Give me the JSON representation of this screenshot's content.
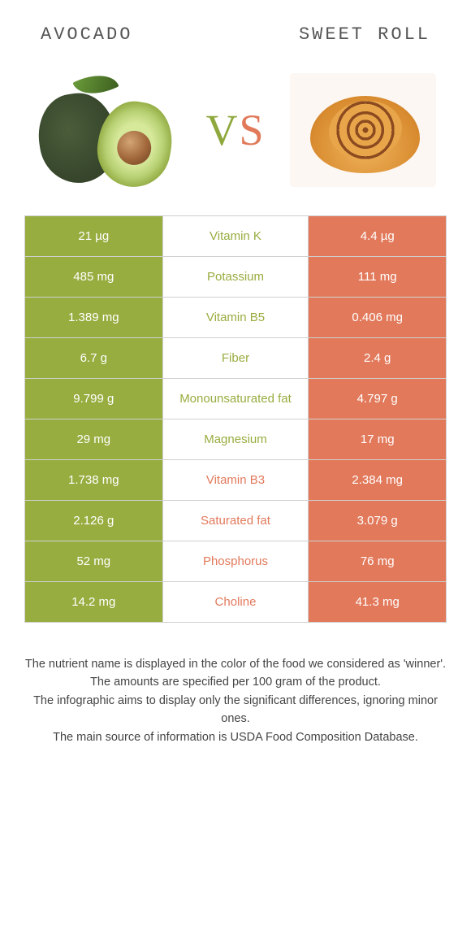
{
  "colors": {
    "left": "#97ad3f",
    "right": "#e2795b",
    "row_border": "#d0d0d0",
    "text_white": "#ffffff"
  },
  "foods": {
    "left": {
      "title": "Avocado"
    },
    "right": {
      "title": "Sweet roll"
    }
  },
  "vs": {
    "v": "V",
    "s": "S"
  },
  "rows": [
    {
      "name": "Vitamin K",
      "left": "21 µg",
      "right": "4.4 µg",
      "winner": "left"
    },
    {
      "name": "Potassium",
      "left": "485 mg",
      "right": "111 mg",
      "winner": "left"
    },
    {
      "name": "Vitamin B5",
      "left": "1.389 mg",
      "right": "0.406 mg",
      "winner": "left"
    },
    {
      "name": "Fiber",
      "left": "6.7 g",
      "right": "2.4 g",
      "winner": "left"
    },
    {
      "name": "Monounsaturated fat",
      "left": "9.799 g",
      "right": "4.797 g",
      "winner": "left"
    },
    {
      "name": "Magnesium",
      "left": "29 mg",
      "right": "17 mg",
      "winner": "left"
    },
    {
      "name": "Vitamin B3",
      "left": "1.738 mg",
      "right": "2.384 mg",
      "winner": "right"
    },
    {
      "name": "Saturated fat",
      "left": "2.126 g",
      "right": "3.079 g",
      "winner": "right"
    },
    {
      "name": "Phosphorus",
      "left": "52 mg",
      "right": "76 mg",
      "winner": "right"
    },
    {
      "name": "Choline",
      "left": "14.2 mg",
      "right": "41.3 mg",
      "winner": "right"
    }
  ],
  "footnotes": [
    "The nutrient name is displayed in the color of the food we considered as 'winner'.",
    "The amounts are specified per 100 gram of the product.",
    "The infographic aims to display only the significant differences, ignoring minor ones.",
    "The main source of information is USDA Food Composition Database."
  ]
}
